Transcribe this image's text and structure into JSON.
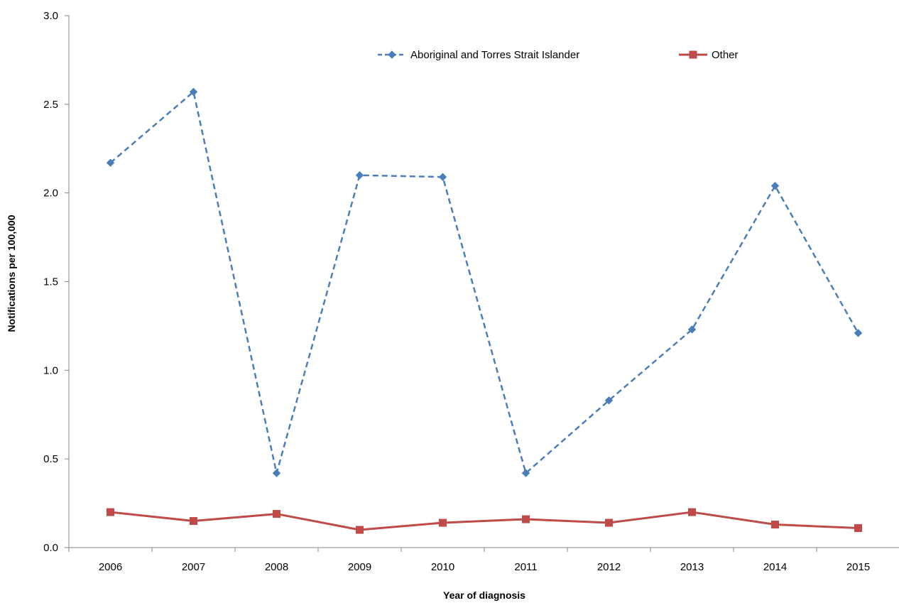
{
  "chart_data": {
    "type": "line",
    "x": [
      "2006",
      "2007",
      "2008",
      "2009",
      "2010",
      "2011",
      "2012",
      "2013",
      "2014",
      "2015"
    ],
    "series": [
      {
        "name": "Aboriginal and Torres Strait Islander",
        "values": [
          2.17,
          2.57,
          0.42,
          2.1,
          2.09,
          0.42,
          0.83,
          1.23,
          2.04,
          1.21
        ],
        "color": "#4a7ebb",
        "line_style": "dashed",
        "marker": "diamond"
      },
      {
        "name": "Other",
        "values": [
          0.2,
          0.15,
          0.19,
          0.1,
          0.14,
          0.16,
          0.14,
          0.2,
          0.13,
          0.11
        ],
        "color": "#be4b48",
        "line_style": "solid",
        "marker": "square"
      }
    ],
    "title": "",
    "xlabel": "Year of diagnosis",
    "ylabel": "Notifications per 100,000",
    "ylim": [
      0,
      3.0
    ],
    "yticks": [
      "0.0",
      "0.5",
      "1.0",
      "1.5",
      "2.0",
      "2.5",
      "3.0"
    ],
    "grid": false,
    "legend_position": "top"
  }
}
